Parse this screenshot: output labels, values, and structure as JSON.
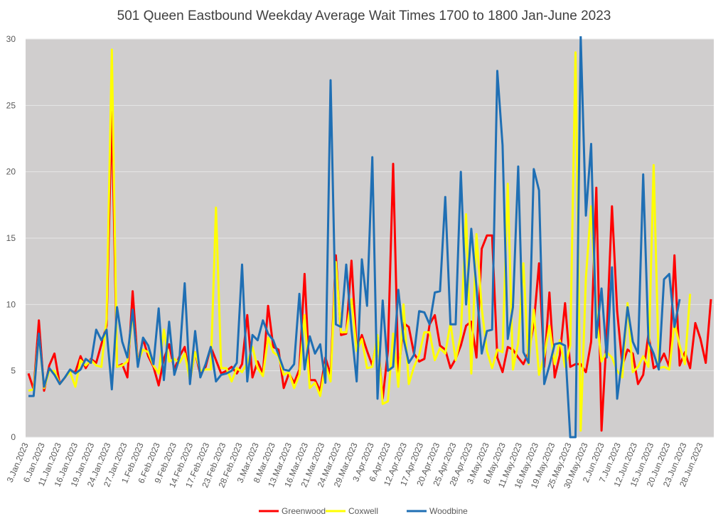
{
  "chart_data": {
    "type": "line",
    "title": "501 Queen Eastbound Weekday Average Wait Times 1700 to 1800 Jan-June 2023",
    "ylim": [
      0,
      30
    ],
    "yticks": [
      0,
      5,
      10,
      15,
      20,
      25,
      30
    ],
    "grid": true,
    "legend_position": "bottom",
    "x_tick_labels": [
      "3.Jan.2023",
      "6.Jan.2023",
      "11.Jan.2023",
      "16.Jan.2023",
      "19.Jan.2023",
      "24.Jan.2023",
      "27.Jan.2023",
      "1.Feb.2023",
      "6.Feb.2023",
      "9.Feb.2023",
      "14.Feb.2023",
      "17.Feb.2023",
      "23.Feb.2023",
      "28.Feb.2023",
      "3.Mar.2023",
      "8.Mar.2023",
      "13.Mar.2023",
      "16.Mar.2023",
      "21.Mar.2023",
      "24.Mar.2023",
      "29.Mar.2023",
      "3.Apr.2023",
      "6.Apr.2023",
      "12.Apr.2023",
      "17.Apr.2023",
      "20.Apr.2023",
      "25.Apr.2023",
      "28.Apr.2023",
      "3.May.2023",
      "8.May.2023",
      "11.May.2023",
      "16.May.2023",
      "19.May.2023",
      "25.May.2023",
      "30.May.2023",
      "2.Jun.2023",
      "7.Jun.2023",
      "12.Jun.2023",
      "15.Jun.2023",
      "20.Jun.2023",
      "23.Jun.2023",
      "28.Jun.2023"
    ],
    "series": [
      {
        "name": "Greenwood",
        "color": "#ff0000",
        "values": [
          4.8,
          3.6,
          8.8,
          3.5,
          5.4,
          6.3,
          4,
          4.5,
          5,
          4.9,
          6.1,
          5.2,
          5.9,
          5.6,
          7,
          8.4,
          24.5,
          5.3,
          5.5,
          4.5,
          11,
          5.5,
          7.4,
          6.1,
          5.3,
          3.9,
          5.9,
          7,
          5.1,
          6.1,
          6.8,
          4.3,
          6.4,
          4.7,
          5.3,
          6.8,
          5.8,
          4.8,
          5,
          5.3,
          4.8,
          5.5,
          9.2,
          4.5,
          5.7,
          4.8,
          9.9,
          6.8,
          6.6,
          3.7,
          4.8,
          4.1,
          5.1,
          12.3,
          4.3,
          4.3,
          3.5,
          6,
          4.7,
          13.7,
          7.7,
          7.8,
          13.3,
          6.6,
          7.7,
          6.5,
          5.4,
          7.6,
          2.9,
          6.5,
          20.6,
          4.7,
          8.6,
          8.3,
          6.3,
          5.7,
          5.9,
          8.5,
          9.2,
          6.9,
          6.6,
          5.2,
          5.9,
          6.9,
          8.4,
          8.7,
          6,
          14.2,
          15.2,
          15.2,
          6,
          4.9,
          6.8,
          6.6,
          6,
          5.5,
          6.4,
          8.5,
          13.1,
          5.3,
          10.9,
          4.5,
          6.2,
          10.1,
          5.3,
          5.5,
          5.5,
          4.9,
          7.2,
          18.8,
          0.5,
          7.7,
          17.4,
          9.5,
          5.4,
          6.6,
          6.3,
          4.0,
          4.7,
          7.8,
          5.2,
          5.5,
          6.3,
          5.3,
          13.7,
          5.4,
          6.4,
          5.2,
          8.6,
          7.4,
          5.6,
          10.4
        ],
        "_note": "visual trace"
      },
      {
        "name": "Coxwell",
        "color": "#ffff00",
        "values": [
          3.5,
          3.6,
          7.7,
          3.7,
          5,
          5,
          4,
          4.5,
          4.9,
          3.8,
          5.8,
          5.4,
          5.8,
          5.4,
          5.3,
          8.9,
          29.2,
          5.3,
          5.4,
          5.7,
          9.3,
          5.7,
          6.6,
          6.4,
          5.4,
          4.8,
          8.1,
          5.7,
          5.9,
          5.6,
          6.3,
          4.3,
          6.4,
          5,
          5.1,
          5.1,
          17.3,
          5.2,
          5.2,
          4.2,
          5.2,
          4.9,
          5.6,
          6.8,
          5.2,
          4.6,
          7.5,
          6.4,
          6.1,
          4.7,
          4.9,
          3.7,
          4.7,
          9.2,
          3.7,
          4.1,
          3.1,
          5.5,
          4.2,
          13.2,
          7.9,
          7.9,
          10.4,
          6.5,
          7.4,
          5.2,
          5.3,
          7.7,
          2.5,
          2.7,
          7.8,
          3.8,
          10,
          4,
          5.3,
          6.2,
          7.9,
          7.9,
          5.8,
          6.7,
          6.3,
          8.6,
          5.8,
          7.7,
          16.8,
          4.8,
          15.3,
          9.7,
          6.5,
          5.2,
          6.6,
          6.4,
          19.1,
          5.1,
          7.1,
          13.1,
          5.5,
          9.6,
          4.7,
          6.1,
          8.4,
          5.5,
          7.3,
          5.3,
          6.9,
          29.0,
          0.5,
          12.0,
          17.4,
          9.3,
          5.7,
          6.4,
          6.0,
          5.0,
          4.5,
          10.1,
          4.9,
          5.3,
          6.1,
          5.3,
          20.5,
          5.2,
          5.3,
          5.1,
          8.6,
          6.9,
          5.5,
          10.8
        ]
      },
      {
        "name": "Woodbine",
        "color": "#1f6fb4",
        "values": [
          3.1,
          3.1,
          7.8,
          3.8,
          5.2,
          4.7,
          4.0,
          4.5,
          5.1,
          4.8,
          5.1,
          5.9,
          5.6,
          8.1,
          7.3,
          8.1,
          3.6,
          9.8,
          7.2,
          6.0,
          9.6,
          5.3,
          7.5,
          6.9,
          5.5,
          9.7,
          4.3,
          8.7,
          4.7,
          6.0,
          11.6,
          4.0,
          8.0,
          4.5,
          5.5,
          6.8,
          4.2,
          4.7,
          4.8,
          5.0,
          5.6,
          13.0,
          4.2,
          7.7,
          7.3,
          8.8,
          7.8,
          7.3,
          6.2,
          5.1,
          5.0,
          5.5,
          10.8,
          5.1,
          7.6,
          6.3,
          7.0,
          4.1,
          26.9,
          8.5,
          8.3,
          13.0,
          8.1,
          4.2,
          13.4,
          9.9,
          21.1,
          2.9,
          10.3,
          5.0,
          5.3,
          11.1,
          7.4,
          5.6,
          6.2,
          9.5,
          9.4,
          8.5,
          10.9,
          11.0,
          18.1,
          8.5,
          8.5,
          20.0,
          10.0,
          15.7,
          11.3,
          6.3,
          8.0,
          8.1,
          27.6,
          22.0,
          7.4,
          9.8,
          20.4,
          6.4,
          5.6,
          20.2,
          18.6,
          4.0,
          5.4,
          7.0,
          7.1,
          6.9,
          0.0,
          0.0,
          30.2,
          16.7,
          22.1,
          7.5,
          11.2,
          6.0,
          12.8,
          2.9,
          6.0,
          9.8,
          7.2,
          6.3,
          19.8,
          7.2,
          6.3,
          5.1,
          11.9,
          12.3,
          8.3,
          10.4
        ]
      }
    ]
  }
}
